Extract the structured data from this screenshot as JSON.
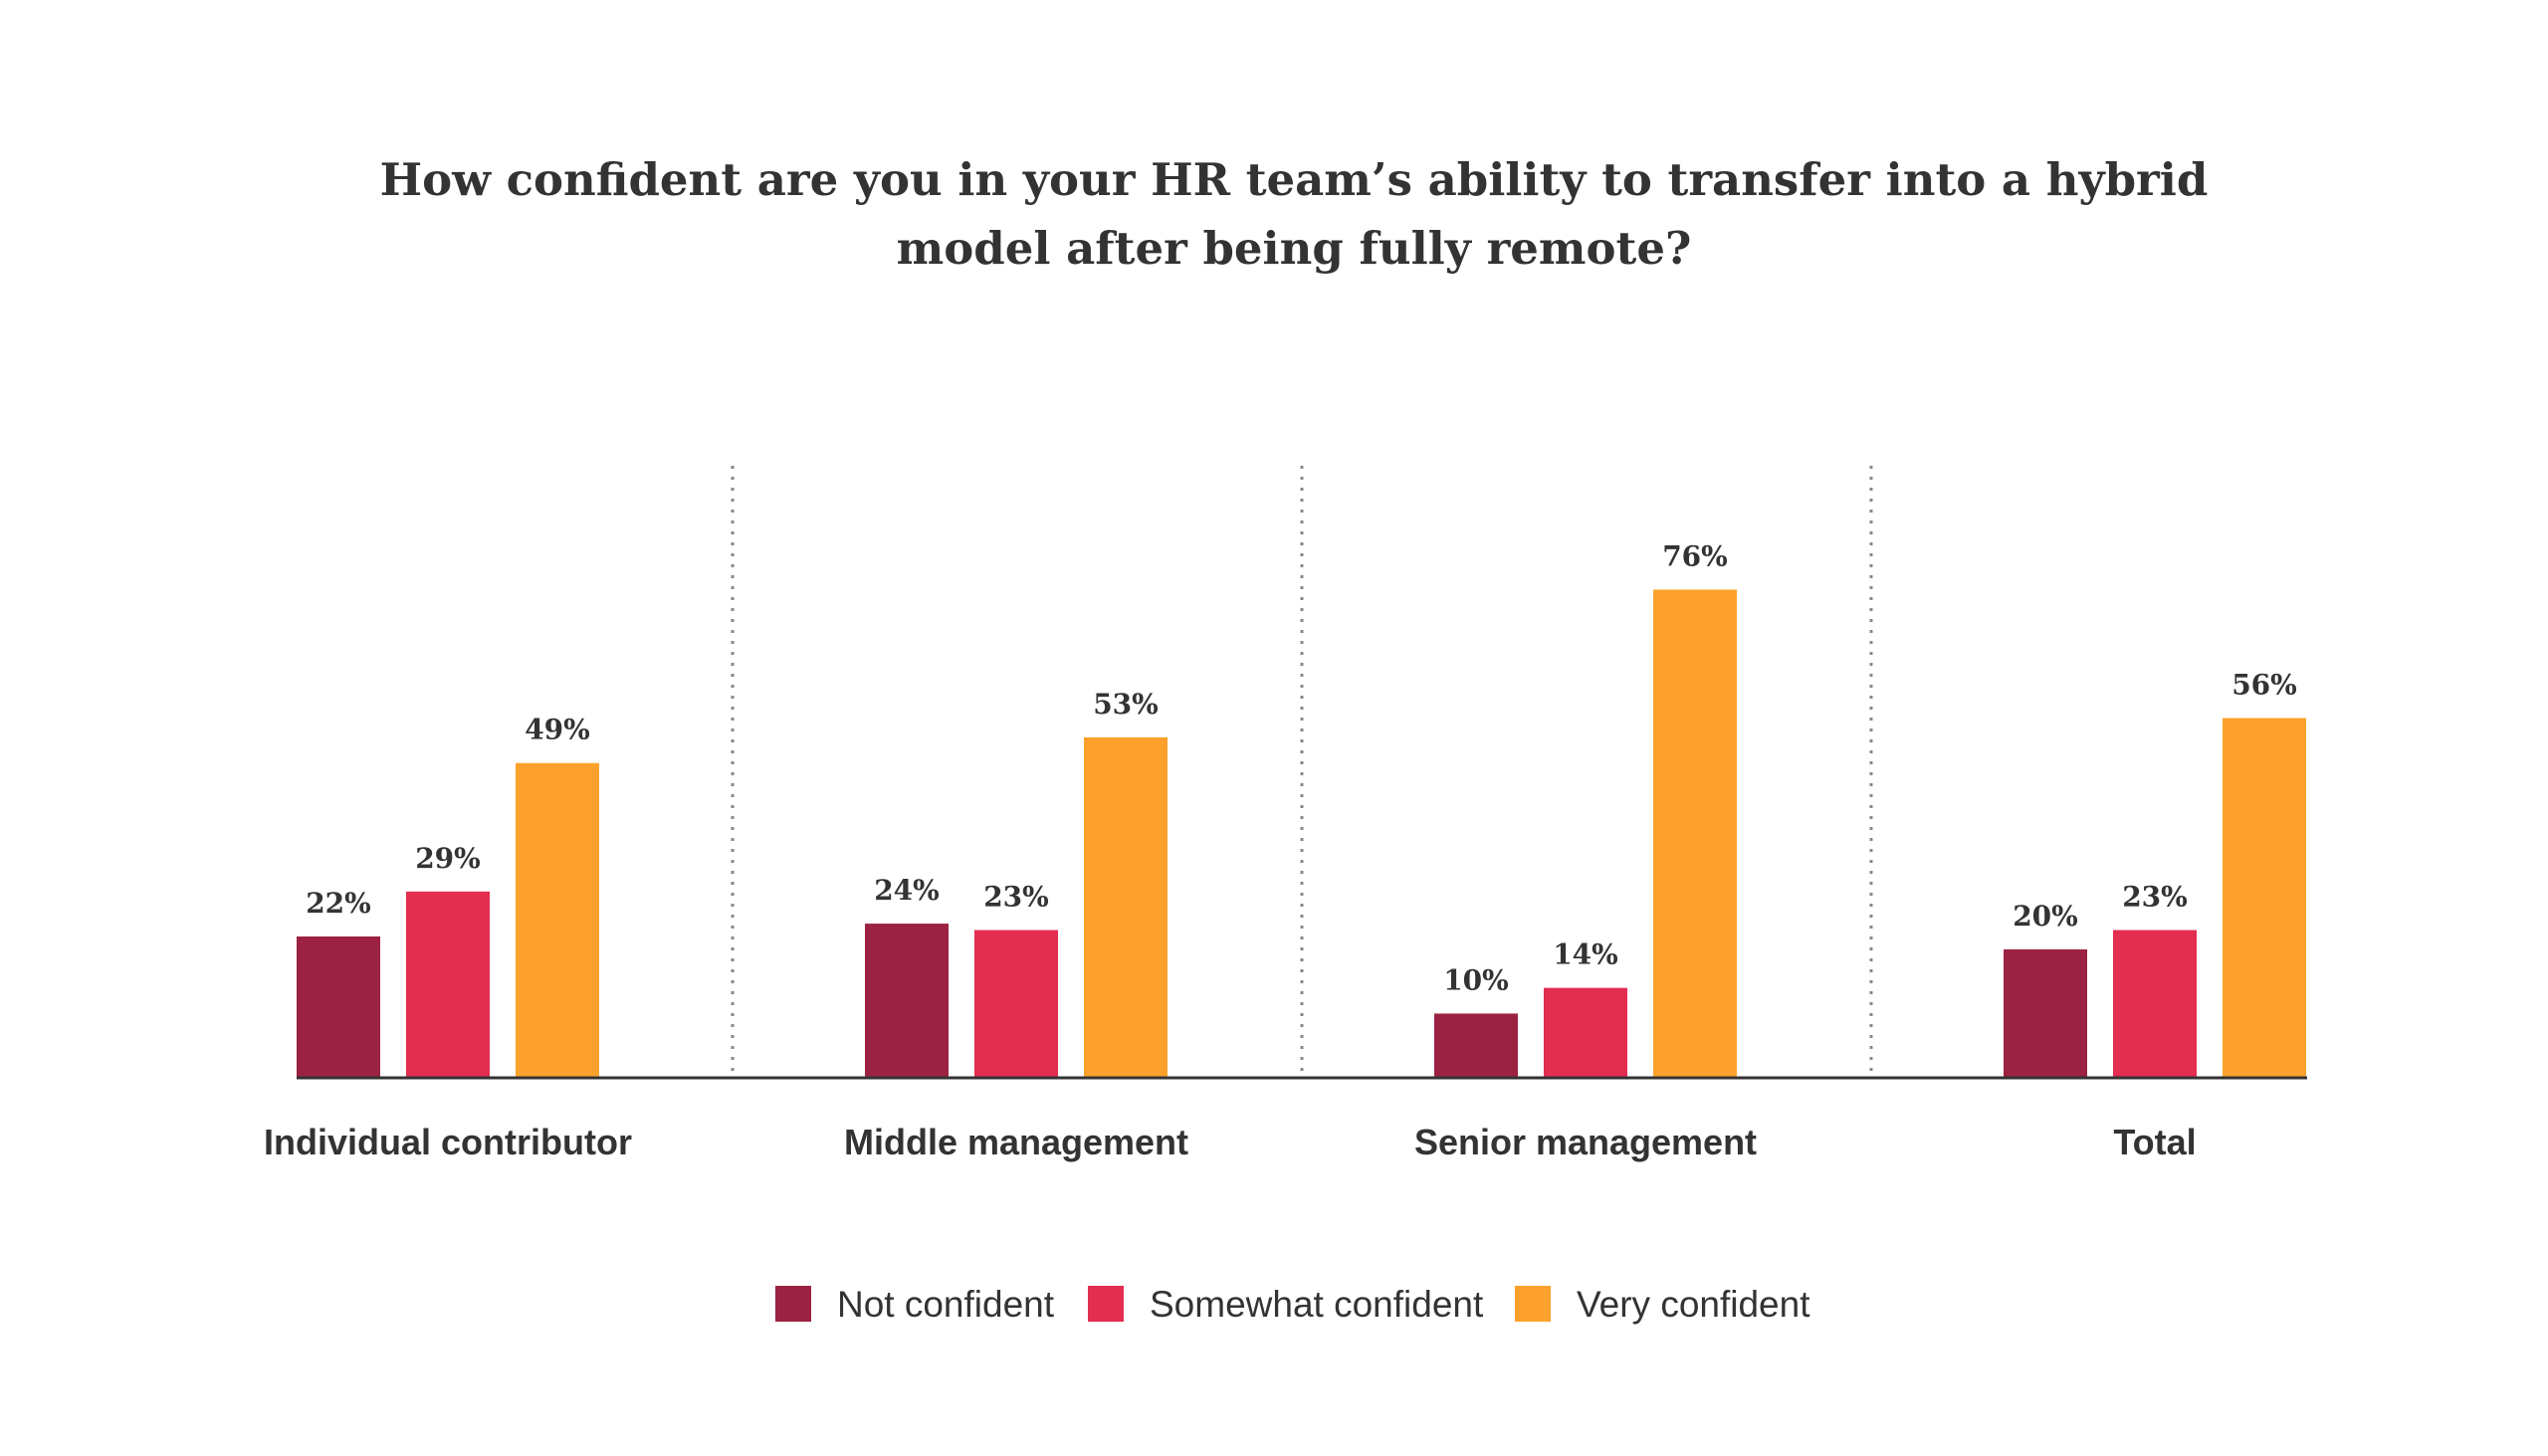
{
  "chart_data": {
    "type": "bar",
    "title_lines": [
      "How confident are you in your HR team’s ability to transfer into a hybrid",
      "model after being fully remote?"
    ],
    "categories": [
      "Individual contributor",
      "Middle management",
      "Senior management",
      "Total"
    ],
    "series": [
      {
        "name": "Not confident",
        "color": "#9b2242",
        "values": [
          22,
          24,
          10,
          20
        ],
        "labels": [
          "22%",
          "24%",
          "10%",
          "20%"
        ]
      },
      {
        "name": "Somewhat confident",
        "color": "#e32d51",
        "values": [
          29,
          23,
          14,
          23
        ],
        "labels": [
          "29%",
          "23%",
          "14%",
          "23%"
        ]
      },
      {
        "name": "Very confident",
        "color": "#fca22c",
        "values": [
          49,
          53,
          76,
          56
        ],
        "labels": [
          "49%",
          "53%",
          "76%",
          "56%"
        ]
      }
    ],
    "ylim": [
      0,
      100
    ],
    "grid": false,
    "group_separators": "dotted vertical lines",
    "legend_placement": "bottom-center",
    "baseline_color": "#333333"
  }
}
